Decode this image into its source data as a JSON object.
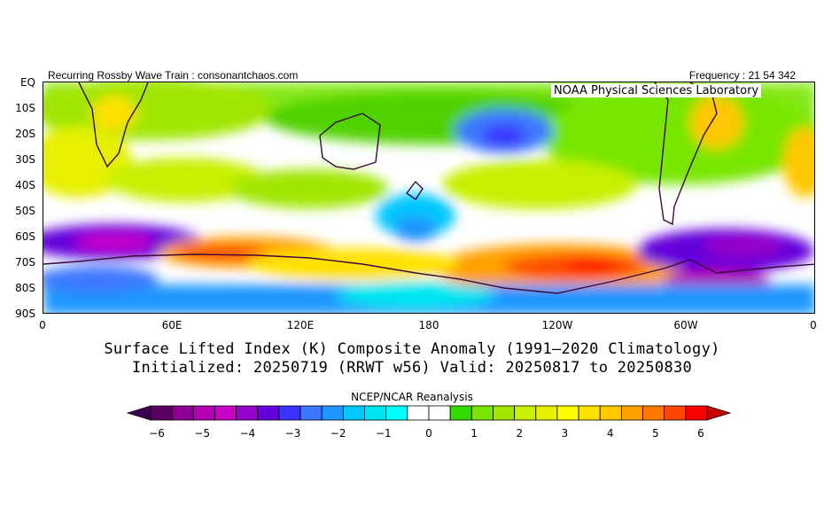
{
  "header": {
    "left_text": "Recurring Rossby Wave Train : consonantchaos.com",
    "right_text": "Frequency : 21 54 342",
    "lab_label": "NOAA Physical Sciences Laboratory"
  },
  "map": {
    "y_tick_labels": [
      "EQ",
      "10S",
      "20S",
      "30S",
      "40S",
      "50S",
      "60S",
      "70S",
      "80S",
      "90S"
    ],
    "x_tick_labels": [
      "0",
      "60E",
      "120E",
      "180",
      "120W",
      "60W",
      "0"
    ]
  },
  "caption": {
    "line1": "Surface Lifted Index (K) Composite Anomaly (1991—2020 Climatology)",
    "line2": "Initialized: 20250719 (RRWT w56) Valid: 20250817 to 20250830"
  },
  "colorbar": {
    "source_label": "NCEP/NCAR Reanalysis",
    "tick_labels": [
      "−6",
      "−5",
      "−4",
      "−3",
      "−2",
      "−1",
      "0",
      "1",
      "2",
      "3",
      "4",
      "5",
      "6"
    ],
    "colors": [
      "#5a0062",
      "#8c0096",
      "#b400b4",
      "#c800c8",
      "#9600c8",
      "#6400dc",
      "#3c32ff",
      "#3c78ff",
      "#1e96ff",
      "#00c8ff",
      "#00e6f0",
      "#00ffff",
      "#ffffff",
      "#ffffff",
      "#32dc00",
      "#78e600",
      "#a0e600",
      "#c8f000",
      "#e6f000",
      "#ffff00",
      "#ffe100",
      "#ffc800",
      "#ffa000",
      "#ff7800",
      "#ff4600",
      "#ff0000"
    ],
    "under_color": "#3c0050",
    "over_color": "#c80000"
  }
}
